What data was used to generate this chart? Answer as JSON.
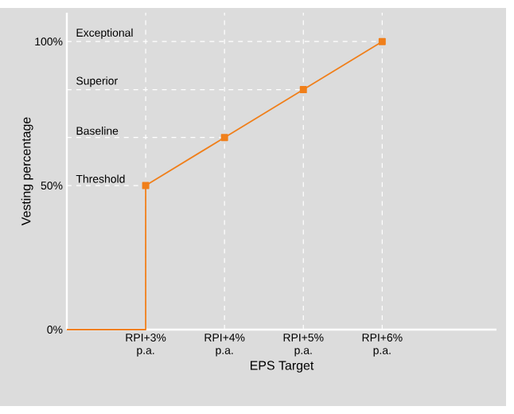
{
  "chart_data": {
    "type": "line",
    "xlabel": "EPS Target",
    "ylabel": "Vesting percentage",
    "categories": [
      null,
      "RPI+3% p.a.",
      "RPI+4% p.a.",
      "RPI+5% p.a.",
      "RPI+6% p.a."
    ],
    "series": [
      {
        "type": "step",
        "color": "#f07f1a",
        "marker": "none",
        "values": [
          0,
          50,
          null,
          null,
          null
        ]
      },
      {
        "color": "#f07f1a",
        "marker": "square",
        "values": [
          null,
          50,
          66.7,
          83.3,
          100
        ]
      }
    ],
    "ylim": [
      0,
      110
    ],
    "grid": "x",
    "yticks": [
      {
        "value": 0,
        "label": "0%"
      },
      {
        "value": 50,
        "label": "50%"
      },
      {
        "value": 100,
        "label": "100%"
      }
    ],
    "ref_lines": [
      {
        "axis": "y",
        "value": 50,
        "label": "Threshold",
        "color": "#ffffff",
        "line_style": "dashed"
      },
      {
        "axis": "y",
        "value": 66.7,
        "label": "Baseline",
        "color": "#ffffff",
        "line_style": "dashed"
      },
      {
        "axis": "y",
        "value": 83.3,
        "label": "Superior",
        "color": "#ffffff",
        "line_style": "dashed"
      },
      {
        "axis": "y",
        "value": 100,
        "label": "Exceptional",
        "color": "#ffffff",
        "line_style": "dashed"
      }
    ]
  }
}
